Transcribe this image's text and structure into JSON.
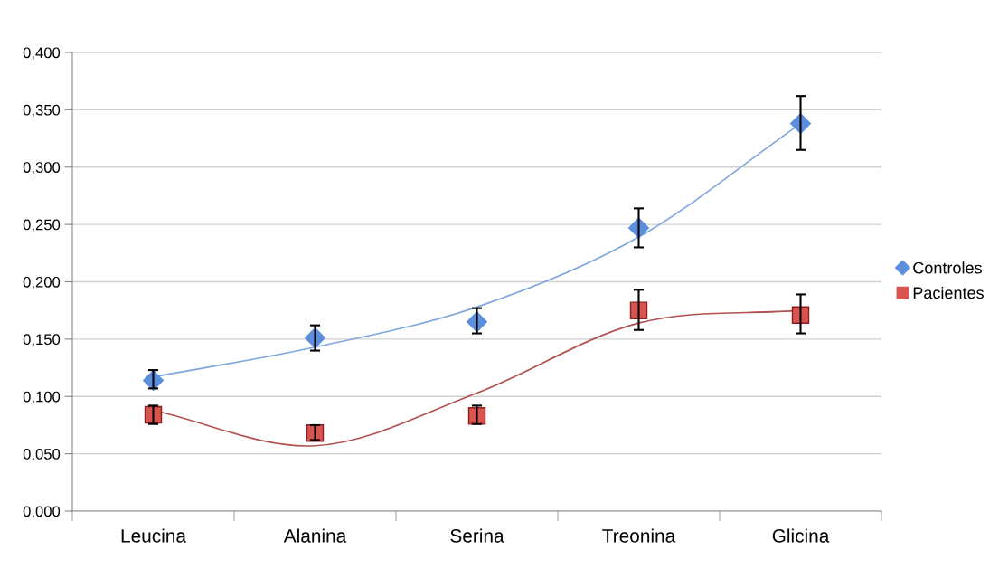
{
  "chart_data": {
    "type": "scatter",
    "categories": [
      "Leucina",
      "Alanina",
      "Serina",
      "Treonina",
      "Glicina"
    ],
    "series": [
      {
        "name": "Controles",
        "marker": "diamond",
        "color": "#5b8fde",
        "values": [
          0.114,
          0.151,
          0.165,
          0.247,
          0.338
        ],
        "errors": [
          [
            0.107,
            0.123
          ],
          [
            0.14,
            0.162
          ],
          [
            0.155,
            0.177
          ],
          [
            0.23,
            0.264
          ],
          [
            0.315,
            0.362
          ]
        ]
      },
      {
        "name": "Pacientes",
        "marker": "square",
        "color": "#d9534f",
        "values": [
          0.084,
          0.068,
          0.083,
          0.175,
          0.171
        ],
        "errors": [
          [
            0.076,
            0.092
          ],
          [
            0.062,
            0.075
          ],
          [
            0.076,
            0.092
          ],
          [
            0.158,
            0.193
          ],
          [
            0.155,
            0.189
          ]
        ]
      },
      {
        "type": "line",
        "color": "#7fa6e0",
        "values": [
          0.117,
          0.143,
          0.178,
          0.239,
          0.338
        ]
      },
      {
        "type": "line",
        "color": "#b05050",
        "values": [
          0.088,
          0.057,
          0.103,
          0.164,
          0.175
        ]
      }
    ],
    "ylim": [
      0,
      0.4
    ],
    "yticks": [
      {
        "value": 0,
        "label": "0,000"
      },
      {
        "value": 0.05,
        "label": "0,050"
      },
      {
        "value": 0.1,
        "label": "0,100"
      },
      {
        "value": 0.15,
        "label": "0,150"
      },
      {
        "value": 0.2,
        "label": "0,200"
      },
      {
        "value": 0.25,
        "label": "0,250"
      },
      {
        "value": 0.3,
        "label": "0,300"
      },
      {
        "value": 0.35,
        "label": "0,350"
      },
      {
        "value": 0.4,
        "label": "0,400"
      }
    ],
    "grid": "y",
    "legend": "right"
  }
}
